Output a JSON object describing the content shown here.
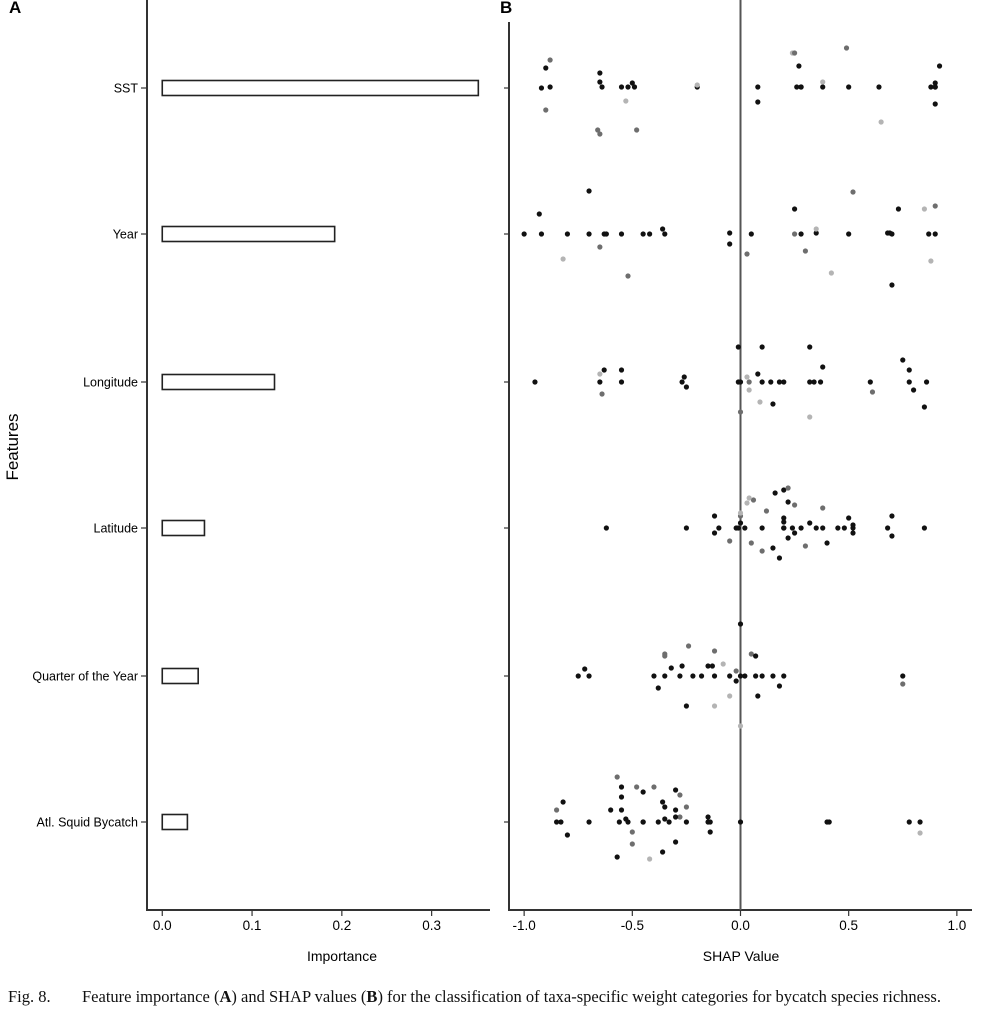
{
  "panel_a": {
    "label": "A"
  },
  "panel_b": {
    "label": "B"
  },
  "y_axis_label": "Features",
  "caption": {
    "number": "Fig. 8.",
    "text_1": "Feature importance (",
    "bold_a": "A",
    "text_2": ") and SHAP values (",
    "bold_b": "B",
    "text_3": ") for the classification of taxa-specific weight categories for bycatch species richness."
  },
  "colors": {
    "box_fill": "#ffffff",
    "box_stroke": "#222222",
    "axis": "#333333",
    "point_dark": "#111111",
    "point_mid": "#6e6e6e",
    "point_light": "#b4b4b4"
  },
  "chart_data": [
    {
      "type": "bar",
      "orientation": "horizontal",
      "title": "A",
      "categories": [
        "SST",
        "Year",
        "Longitude",
        "Latitude",
        "Quarter of the Year",
        "Atl. Squid Bycatch"
      ],
      "values": [
        0.352,
        0.192,
        0.125,
        0.047,
        0.04,
        0.028
      ],
      "xlabel": "Importance",
      "ylabel": "Features",
      "xlim": [
        -0.017,
        0.365
      ],
      "xticks": [
        0.0,
        0.1,
        0.2,
        0.3
      ],
      "xtick_labels": [
        "0.0",
        "0.1",
        "0.2",
        "0.3"
      ]
    },
    {
      "type": "scatter",
      "title": "B",
      "categories": [
        "SST",
        "Year",
        "Longitude",
        "Latitude",
        "Quarter of the Year",
        "Atl. Squid Bycatch"
      ],
      "xlabel": "SHAP Value",
      "xlim": [
        -1.07,
        1.07
      ],
      "xticks": [
        -1.0,
        -0.5,
        0.0,
        0.5,
        1.0
      ],
      "xtick_labels": [
        "-1.0",
        "-0.5",
        "0.0",
        "0.5",
        "1.0"
      ],
      "vline_at": 0.0,
      "series": [
        {
          "feature": "SST",
          "x": [
            -0.92,
            -0.9,
            -0.88,
            -0.9,
            -0.88,
            -0.65,
            -0.64,
            -0.66,
            -0.65,
            -0.55,
            -0.52,
            -0.5,
            -0.49,
            -0.53,
            -0.2,
            0.08,
            0.08,
            0.24,
            0.26,
            0.28,
            0.27,
            0.38,
            0.38,
            0.5,
            0.64,
            0.88,
            0.9,
            0.9,
            0.9,
            0.9,
            -0.48,
            -0.65,
            0.25,
            0.65,
            0.49,
            0.28,
            -0.2,
            0.92
          ],
          "y": [
            0,
            -20,
            -28,
            22,
            -1,
            -15,
            -1,
            42,
            -6,
            -1,
            -1,
            -5,
            -1,
            13,
            -1,
            -1,
            14,
            -35,
            -1,
            -1,
            -22,
            -1,
            -6,
            -1,
            -1,
            -1,
            -5,
            16,
            -1,
            -1,
            42,
            46,
            -35,
            34,
            -40,
            -1,
            -3,
            -22
          ],
          "g": [
            2,
            2,
            1,
            1,
            2,
            2,
            2,
            1,
            2,
            2,
            2,
            2,
            2,
            0,
            2,
            2,
            2,
            0,
            2,
            2,
            2,
            2,
            0,
            2,
            2,
            2,
            2,
            2,
            2,
            2,
            1,
            1,
            1,
            0,
            1,
            2,
            0,
            2
          ]
        },
        {
          "feature": "Year",
          "x": [
            -1.0,
            -0.93,
            -0.92,
            -0.8,
            -0.82,
            -0.7,
            -0.7,
            -0.65,
            -0.63,
            -0.62,
            -0.55,
            -0.52,
            -0.45,
            -0.42,
            -0.36,
            -0.35,
            -0.05,
            -0.05,
            0.03,
            0.05,
            0.25,
            0.28,
            0.3,
            0.35,
            0.35,
            0.5,
            0.52,
            0.68,
            0.69,
            0.7,
            0.7,
            0.73,
            0.85,
            0.87,
            0.88,
            0.9,
            0.9,
            0.25,
            0.42
          ],
          "y": [
            0,
            -20,
            0,
            0,
            25,
            0,
            -43,
            13,
            0,
            0,
            0,
            42,
            0,
            0,
            -5,
            0,
            -1,
            10,
            20,
            0,
            -25,
            0,
            17,
            -1,
            -5,
            0,
            -42,
            -1,
            -1,
            51,
            0,
            -25,
            -25,
            0,
            27,
            0,
            -28,
            0,
            39
          ],
          "g": [
            2,
            2,
            2,
            2,
            0,
            2,
            2,
            1,
            2,
            2,
            2,
            1,
            2,
            2,
            2,
            2,
            2,
            2,
            1,
            2,
            2,
            2,
            1,
            2,
            0,
            2,
            1,
            2,
            2,
            2,
            2,
            2,
            0,
            2,
            0,
            2,
            1,
            1,
            0
          ]
        },
        {
          "feature": "Longitude",
          "x": [
            -0.95,
            -0.65,
            -0.64,
            -0.65,
            -0.63,
            -0.55,
            -0.55,
            -0.27,
            -0.26,
            -0.25,
            -0.01,
            -0.01,
            0.0,
            0.03,
            0.04,
            0.08,
            0.1,
            0.09,
            0.1,
            0.14,
            0.15,
            0.18,
            0.2,
            0.32,
            0.32,
            0.34,
            0.37,
            0.38,
            0.6,
            0.61,
            0.75,
            0.78,
            0.78,
            0.8,
            0.85,
            0.86,
            0.0,
            0.04,
            0.32
          ],
          "y": [
            0,
            0,
            12,
            -8,
            -12,
            0,
            -12,
            0,
            -5,
            5,
            0,
            -35,
            30,
            -5,
            8,
            -8,
            -35,
            20,
            0,
            0,
            22,
            0,
            0,
            0,
            -35,
            0,
            0,
            -15,
            0,
            10,
            -22,
            0,
            -12,
            8,
            25,
            0,
            0,
            0,
            35
          ],
          "g": [
            2,
            2,
            1,
            0,
            2,
            2,
            2,
            2,
            2,
            2,
            2,
            2,
            1,
            0,
            0,
            2,
            2,
            0,
            2,
            2,
            2,
            2,
            2,
            2,
            2,
            2,
            2,
            2,
            2,
            1,
            2,
            2,
            2,
            2,
            2,
            2,
            2,
            1,
            0
          ]
        },
        {
          "feature": "Latitude",
          "x": [
            -0.62,
            -0.25,
            -0.12,
            -0.12,
            -0.1,
            -0.05,
            -0.02,
            -0.01,
            0.0,
            0.02,
            0.05,
            0.06,
            0.1,
            0.12,
            0.15,
            0.18,
            0.2,
            0.2,
            0.2,
            0.22,
            0.22,
            0.24,
            0.25,
            0.25,
            0.28,
            0.3,
            0.32,
            0.35,
            0.38,
            0.38,
            0.4,
            0.45,
            0.48,
            0.5,
            0.52,
            0.52,
            0.52,
            0.68,
            0.7,
            0.7,
            0.85,
            0.0,
            0.03,
            0.16,
            0.2,
            0.22,
            0.2,
            0.0,
            0.04,
            0.1
          ],
          "y": [
            0,
            0,
            -12,
            5,
            0,
            13,
            0,
            0,
            -5,
            0,
            15,
            -28,
            0,
            -17,
            20,
            30,
            0,
            -10,
            0,
            -26,
            10,
            0,
            -23,
            5,
            0,
            18,
            -5,
            0,
            0,
            -20,
            15,
            0,
            0,
            -10,
            0,
            -3,
            5,
            0,
            -12,
            8,
            0,
            -12,
            -25,
            -35,
            -38,
            -40,
            -6,
            -15,
            -30,
            23
          ],
          "g": [
            2,
            2,
            2,
            2,
            2,
            1,
            2,
            2,
            2,
            2,
            1,
            1,
            2,
            1,
            2,
            2,
            2,
            2,
            2,
            2,
            2,
            2,
            1,
            2,
            2,
            1,
            2,
            2,
            2,
            1,
            2,
            2,
            2,
            2,
            2,
            2,
            2,
            2,
            2,
            2,
            2,
            1,
            0,
            2,
            2,
            1,
            2,
            0,
            0,
            1
          ]
        },
        {
          "feature": "Quarter of the Year",
          "x": [
            -0.75,
            -0.72,
            -0.7,
            -0.4,
            -0.38,
            -0.35,
            -0.35,
            -0.32,
            -0.28,
            -0.27,
            -0.25,
            -0.24,
            -0.22,
            -0.18,
            -0.15,
            -0.12,
            -0.12,
            -0.08,
            -0.05,
            -0.02,
            0.0,
            0.0,
            0.02,
            0.05,
            0.07,
            0.08,
            0.1,
            0.15,
            0.18,
            0.2,
            0.75,
            0.75,
            -0.13,
            -0.05,
            0.0,
            -0.02,
            0.07,
            -0.35,
            -0.12
          ],
          "y": [
            0,
            -7,
            0,
            0,
            12,
            0,
            -22,
            -8,
            0,
            -10,
            30,
            -30,
            0,
            0,
            -10,
            30,
            0,
            -12,
            20,
            5,
            0,
            50,
            0,
            -22,
            0,
            20,
            0,
            0,
            10,
            0,
            0,
            8,
            -10,
            0,
            -52,
            -5,
            -20,
            -20,
            -25
          ],
          "g": [
            2,
            2,
            2,
            2,
            2,
            2,
            1,
            2,
            2,
            2,
            2,
            1,
            2,
            2,
            2,
            0,
            2,
            0,
            0,
            2,
            2,
            0,
            2,
            1,
            2,
            2,
            2,
            2,
            2,
            2,
            2,
            1,
            2,
            2,
            2,
            1,
            2,
            1,
            1
          ]
        },
        {
          "feature": "Atl. Squid Bycatch",
          "x": [
            -0.85,
            -0.85,
            -0.83,
            -0.82,
            -0.8,
            -0.7,
            -0.57,
            -0.57,
            -0.55,
            -0.55,
            -0.53,
            -0.52,
            -0.5,
            -0.48,
            -0.45,
            -0.4,
            -0.38,
            -0.36,
            -0.35,
            -0.33,
            -0.3,
            -0.3,
            -0.28,
            -0.25,
            -0.15,
            -0.14,
            -0.14,
            0.0,
            0.41,
            0.4,
            0.78,
            0.83,
            0.83,
            -0.56,
            -0.5,
            -0.45,
            -0.42,
            -0.36,
            -0.3,
            -0.28,
            -0.25,
            -0.6,
            -0.55,
            -0.45,
            -0.35,
            -0.3,
            -0.15
          ],
          "y": [
            0,
            -12,
            0,
            -20,
            13,
            0,
            -45,
            35,
            -12,
            -25,
            -3,
            0,
            10,
            -35,
            0,
            -35,
            0,
            -20,
            -3,
            0,
            -12,
            -32,
            -27,
            0,
            0,
            0,
            10,
            0,
            0,
            0,
            0,
            0,
            11,
            0,
            22,
            0,
            37,
            30,
            20,
            -5,
            -15,
            -12,
            -35,
            -30,
            -15,
            -5,
            -5
          ],
          "g": [
            2,
            1,
            2,
            2,
            2,
            2,
            1,
            2,
            2,
            2,
            2,
            2,
            1,
            1,
            2,
            1,
            2,
            2,
            2,
            2,
            2,
            2,
            1,
            2,
            2,
            2,
            2,
            2,
            2,
            2,
            2,
            2,
            0,
            2,
            1,
            2,
            0,
            2,
            2,
            1,
            1,
            2,
            2,
            2,
            2,
            2,
            2
          ]
        }
      ]
    }
  ]
}
